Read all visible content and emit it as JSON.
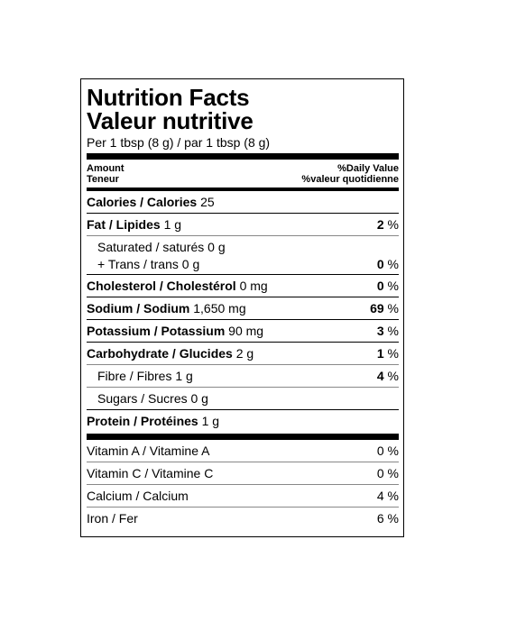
{
  "title_en": "Nutrition Facts",
  "title_fr": "Valeur nutritive",
  "serving": "Per 1 tbsp (8 g) / par 1 tbsp (8 g)",
  "header": {
    "amount": "Amount",
    "teneur": "Teneur",
    "dv_en": "%Daily Value",
    "dv_fr": "%valeur quotidienne"
  },
  "calories": {
    "label": "Calories / Calories",
    "value": "25"
  },
  "fat": {
    "label": "Fat / Lipides",
    "value": "1 g",
    "pct": "2",
    "unit": "%"
  },
  "saturated": {
    "label": "Saturated / saturés 0 g"
  },
  "trans": {
    "label": "+ Trans / trans 0 g",
    "pct": "0",
    "unit": "%"
  },
  "cholesterol": {
    "label": "Cholesterol / Cholestérol",
    "value": "0 mg",
    "pct": "0",
    "unit": "%"
  },
  "sodium": {
    "label": "Sodium / Sodium",
    "value": "1,650 mg",
    "pct": "69",
    "unit": "%"
  },
  "potassium": {
    "label": "Potassium / Potassium",
    "value": "90 mg",
    "pct": "3",
    "unit": "%"
  },
  "carbohydrate": {
    "label": "Carbohydrate / Glucides",
    "value": "2 g",
    "pct": "1",
    "unit": "%"
  },
  "fibre": {
    "label": "Fibre / Fibres 1 g",
    "pct": "4",
    "unit": "%"
  },
  "sugars": {
    "label": "Sugars / Sucres 0 g"
  },
  "protein": {
    "label": "Protein / Protéines",
    "value": "1 g"
  },
  "vitamins": [
    {
      "label": "Vitamin A / Vitamine A",
      "pct": "0 %"
    },
    {
      "label": "Vitamin C / Vitamine C",
      "pct": "0 %"
    },
    {
      "label": "Calcium / Calcium",
      "pct": "4 %"
    },
    {
      "label": "Iron / Fer",
      "pct": "6 %"
    }
  ]
}
